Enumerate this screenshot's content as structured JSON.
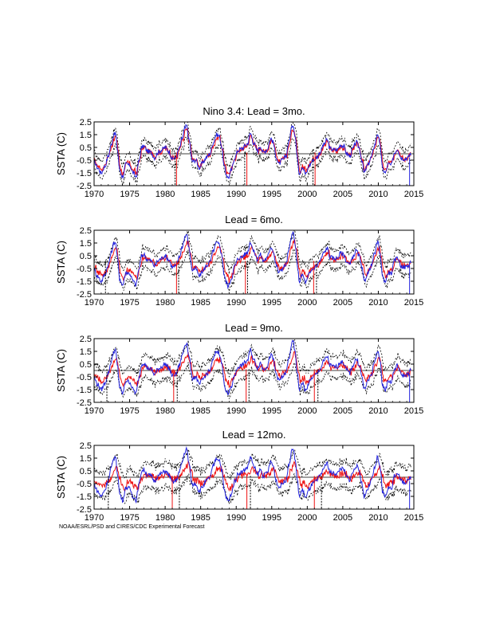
{
  "credit": "NOAA/ESRL/PSD and CIRES/CDC Experimental Forecast",
  "colors": {
    "observed": "#2222dd",
    "forecast": "#ee1111",
    "bounds": "#000000",
    "zero_line": "#000000"
  },
  "chart_data": [
    {
      "type": "line",
      "title": "Nino 3.4: Lead = 3mo.",
      "ylabel": "SSTA (C)",
      "xlim": [
        1970,
        2015
      ],
      "ylim": [
        -2.5,
        2.5
      ],
      "xticks": [
        "1970",
        "1975",
        "1980",
        "1985",
        "1990",
        "1995",
        "2000",
        "2005",
        "2010",
        "2015"
      ],
      "yticks": [
        "2.5",
        "1.5",
        "0.5",
        "-0.5",
        "-1.5",
        "-2.5"
      ],
      "lead": 3,
      "series": [
        {
          "role": "observed"
        },
        {
          "role": "forecast"
        },
        {
          "role": "upper-bound"
        },
        {
          "role": "lower-bound"
        }
      ],
      "drops": [
        1981.4,
        1981.6,
        1991.2,
        1991.5,
        2000.8,
        2001.1
      ]
    },
    {
      "type": "line",
      "title": "Lead = 6mo.",
      "ylabel": "SSTA (C)",
      "xlim": [
        1970,
        2015
      ],
      "ylim": [
        -2.5,
        2.5
      ],
      "xticks": [
        "1970",
        "1975",
        "1980",
        "1985",
        "1990",
        "1995",
        "2000",
        "2005",
        "2010",
        "2015"
      ],
      "yticks": [
        "2.5",
        "1.5",
        "0.5",
        "-0.5",
        "-1.5",
        "-2.5"
      ],
      "lead": 6,
      "series": [
        {
          "role": "observed"
        },
        {
          "role": "forecast"
        },
        {
          "role": "upper-bound"
        },
        {
          "role": "lower-bound"
        }
      ],
      "drops": [
        1971.6,
        1981.6,
        1981.9,
        1991.3,
        1991.6,
        2000.9,
        2001.3
      ]
    },
    {
      "type": "line",
      "title": "Lead = 9mo.",
      "ylabel": "SSTA (C)",
      "xlim": [
        1970,
        2015
      ],
      "ylim": [
        -2.5,
        2.5
      ],
      "xticks": [
        "1970",
        "1975",
        "1980",
        "1985",
        "1990",
        "1995",
        "2000",
        "2005",
        "2010",
        "2015"
      ],
      "yticks": [
        "2.5",
        "1.5",
        "0.5",
        "-0.5",
        "-1.5",
        "-2.5"
      ],
      "lead": 9,
      "series": [
        {
          "role": "observed"
        },
        {
          "role": "forecast"
        },
        {
          "role": "upper-bound"
        },
        {
          "role": "lower-bound"
        }
      ],
      "drops": [
        1971.8,
        1981.2,
        1981.7,
        1991.4,
        1991.8,
        2001.0,
        2001.5
      ]
    },
    {
      "type": "line",
      "title": "Lead = 12mo.",
      "ylabel": "SSTA (C)",
      "xlim": [
        1970,
        2015
      ],
      "ylim": [
        -2.5,
        2.5
      ],
      "xticks": [
        "1970",
        "1975",
        "1980",
        "1985",
        "1990",
        "1995",
        "2000",
        "2005",
        "2010",
        "2015"
      ],
      "yticks": [
        "2.5",
        "1.5",
        "0.5",
        "-0.5",
        "-1.5",
        "-2.5"
      ],
      "lead": 12,
      "series": [
        {
          "role": "observed"
        },
        {
          "role": "forecast"
        },
        {
          "role": "upper-bound"
        },
        {
          "role": "lower-bound"
        }
      ],
      "drops": [
        1972.0,
        1981.0,
        1982.0,
        1991.5,
        1992.0,
        2001.0,
        2002.0
      ]
    }
  ],
  "observed_anomaly": {
    "x": [
      1970.0,
      1970.5,
      1971.0,
      1971.5,
      1972.0,
      1972.4,
      1972.8,
      1973.0,
      1973.3,
      1973.6,
      1974.0,
      1974.5,
      1975.0,
      1975.5,
      1975.9,
      1976.3,
      1976.7,
      1977.0,
      1977.5,
      1978.0,
      1978.5,
      1979.0,
      1979.5,
      1980.0,
      1980.5,
      1981.0,
      1981.5,
      1982.0,
      1982.4,
      1982.8,
      1983.0,
      1983.4,
      1983.8,
      1984.3,
      1984.8,
      1985.3,
      1985.8,
      1986.3,
      1986.8,
      1987.2,
      1987.6,
      1988.0,
      1988.3,
      1988.6,
      1988.9,
      1989.3,
      1989.8,
      1990.3,
      1990.8,
      1991.2,
      1991.6,
      1992.0,
      1992.5,
      1993.0,
      1993.4,
      1993.8,
      1994.3,
      1994.9,
      1995.2,
      1995.6,
      1996.0,
      1996.5,
      1997.0,
      1997.4,
      1997.8,
      1998.0,
      1998.3,
      1998.6,
      1998.9,
      1999.3,
      1999.8,
      2000.3,
      2000.8,
      2001.3,
      2001.8,
      2002.3,
      2002.8,
      2003.2,
      2003.7,
      2004.2,
      2004.7,
      2005.1,
      2005.6,
      2006.0,
      2006.4,
      2006.9,
      2007.3,
      2007.7,
      2008.0,
      2008.5,
      2009.0,
      2009.5,
      2009.9,
      2010.3,
      2010.6,
      2011.0,
      2011.4,
      2011.8,
      2012.3,
      2012.7,
      2013.2,
      2013.7,
      2014.2,
      2014.5
    ],
    "y": [
      -0.6,
      -1.1,
      -1.5,
      -1.0,
      -0.2,
      0.7,
      1.5,
      1.6,
      0.3,
      -1.3,
      -1.8,
      -0.8,
      -0.9,
      -1.5,
      -1.8,
      -0.6,
      0.5,
      0.6,
      0.2,
      0.1,
      -0.3,
      0.1,
      0.3,
      0.5,
      0.2,
      -0.4,
      -0.3,
      0.4,
      1.2,
      2.0,
      2.2,
      1.0,
      -0.6,
      -0.5,
      -1.1,
      -0.7,
      -0.3,
      0.0,
      0.9,
      1.5,
      1.4,
      0.5,
      -1.0,
      -1.6,
      -1.9,
      -1.3,
      -0.3,
      0.3,
      0.4,
      0.6,
      0.8,
      1.6,
      0.8,
      0.2,
      0.6,
      0.1,
      0.3,
      1.2,
      0.9,
      -0.2,
      -0.8,
      -0.5,
      -0.2,
      0.9,
      2.0,
      2.3,
      1.4,
      -0.3,
      -1.5,
      -1.0,
      -1.6,
      -0.9,
      -0.5,
      -0.3,
      0.1,
      0.7,
      1.1,
      0.4,
      0.3,
      0.3,
      0.7,
      0.6,
      0.0,
      -0.2,
      0.4,
      0.9,
      0.5,
      -0.5,
      -1.5,
      -0.9,
      -0.3,
      0.7,
      1.6,
      0.5,
      -1.2,
      -1.5,
      -0.8,
      -0.9,
      0.1,
      0.4,
      -0.3,
      -0.4,
      -0.3,
      0.0
    ]
  }
}
